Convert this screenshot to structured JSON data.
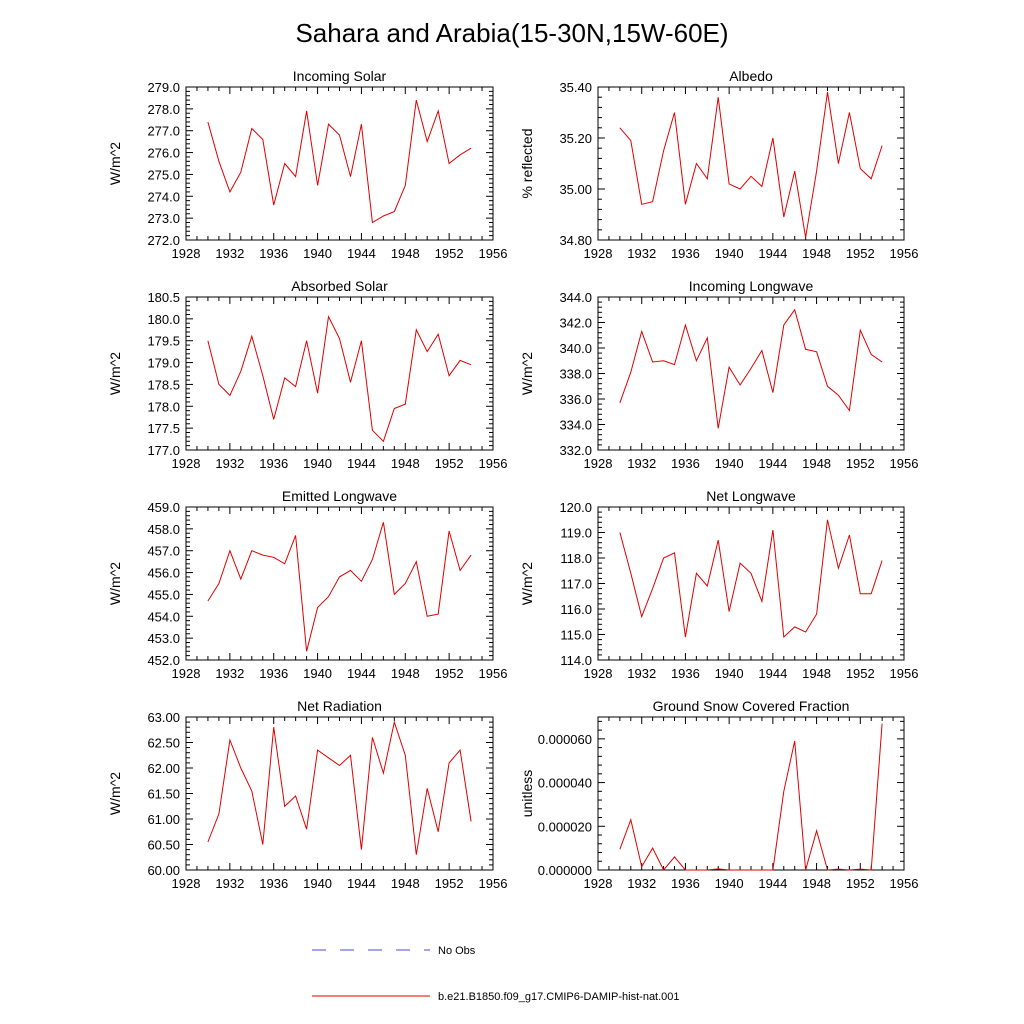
{
  "title": "Sahara and Arabia(15-30N,15W-60E)",
  "legend": {
    "obs_label": "No Obs",
    "model_label": "b.e21.B1850.f09_g17.CMIP6-DAMIP-hist-nat.001",
    "obs_color": "#4a4ad0",
    "model_color": "#e00000"
  },
  "chart_data": [
    {
      "type": "line",
      "title": "Incoming Solar",
      "ylabel": "W/m^2",
      "x": [
        1930,
        1931,
        1932,
        1933,
        1934,
        1935,
        1936,
        1937,
        1938,
        1939,
        1940,
        1941,
        1942,
        1943,
        1944,
        1945,
        1946,
        1947,
        1948,
        1949,
        1950,
        1951,
        1952,
        1953,
        1954
      ],
      "values": [
        277.4,
        275.6,
        274.2,
        275.1,
        277.1,
        276.6,
        273.6,
        275.5,
        274.9,
        277.9,
        274.5,
        277.3,
        276.8,
        274.9,
        277.3,
        272.8,
        273.1,
        273.3,
        274.5,
        278.4,
        276.5,
        277.9,
        275.5,
        275.9,
        276.2
      ],
      "xlim": [
        1928,
        1956
      ],
      "ylim": [
        272.0,
        279.0
      ],
      "yticks": [
        "272.0",
        "273.0",
        "274.0",
        "275.0",
        "276.0",
        "277.0",
        "278.0",
        "279.0"
      ],
      "xticks": [
        "1928",
        "1932",
        "1936",
        "1940",
        "1944",
        "1948",
        "1952",
        "1956"
      ]
    },
    {
      "type": "line",
      "title": "Albedo",
      "ylabel": "% reflected",
      "x": [
        1930,
        1931,
        1932,
        1933,
        1934,
        1935,
        1936,
        1937,
        1938,
        1939,
        1940,
        1941,
        1942,
        1943,
        1944,
        1945,
        1946,
        1947,
        1948,
        1949,
        1950,
        1951,
        1952,
        1953,
        1954
      ],
      "values": [
        35.24,
        35.19,
        34.94,
        34.95,
        35.15,
        35.3,
        34.94,
        35.1,
        35.04,
        35.36,
        35.02,
        35.0,
        35.05,
        35.01,
        35.2,
        34.89,
        35.07,
        34.81,
        35.07,
        35.38,
        35.1,
        35.3,
        35.08,
        35.04,
        35.17
      ],
      "xlim": [
        1928,
        1956
      ],
      "ylim": [
        34.8,
        35.4
      ],
      "yticks": [
        "34.80",
        "35.00",
        "35.20",
        "35.40"
      ],
      "xticks": [
        "1928",
        "1932",
        "1936",
        "1940",
        "1944",
        "1948",
        "1952",
        "1956"
      ]
    },
    {
      "type": "line",
      "title": "Absorbed Solar",
      "ylabel": "W/m^2",
      "x": [
        1930,
        1931,
        1932,
        1933,
        1934,
        1935,
        1936,
        1937,
        1938,
        1939,
        1940,
        1941,
        1942,
        1943,
        1944,
        1945,
        1946,
        1947,
        1948,
        1949,
        1950,
        1951,
        1952,
        1953,
        1954
      ],
      "values": [
        179.5,
        178.5,
        178.25,
        178.8,
        179.6,
        178.7,
        177.7,
        178.65,
        178.45,
        179.5,
        178.3,
        180.05,
        179.55,
        178.55,
        179.5,
        177.45,
        177.2,
        177.95,
        178.05,
        179.75,
        179.25,
        179.65,
        178.7,
        179.05,
        178.95
      ],
      "xlim": [
        1928,
        1956
      ],
      "ylim": [
        177.0,
        180.5
      ],
      "yticks": [
        "177.0",
        "177.5",
        "178.0",
        "178.5",
        "179.0",
        "179.5",
        "180.0",
        "180.5"
      ],
      "xticks": [
        "1928",
        "1932",
        "1936",
        "1940",
        "1944",
        "1948",
        "1952",
        "1956"
      ]
    },
    {
      "type": "line",
      "title": "Incoming Longwave",
      "ylabel": "W/m^2",
      "x": [
        1930,
        1931,
        1932,
        1933,
        1934,
        1935,
        1936,
        1937,
        1938,
        1939,
        1940,
        1941,
        1942,
        1943,
        1944,
        1945,
        1946,
        1947,
        1948,
        1949,
        1950,
        1951,
        1952,
        1953,
        1954
      ],
      "values": [
        335.7,
        338.1,
        341.3,
        338.9,
        339.0,
        338.7,
        341.8,
        339.0,
        340.8,
        333.7,
        338.5,
        337.1,
        338.4,
        339.8,
        336.5,
        341.8,
        343.0,
        339.9,
        339.7,
        337.0,
        336.3,
        335.1,
        341.4,
        339.5,
        338.9
      ],
      "xlim": [
        1928,
        1956
      ],
      "ylim": [
        332.0,
        344.0
      ],
      "yticks": [
        "332.0",
        "334.0",
        "336.0",
        "338.0",
        "340.0",
        "342.0",
        "344.0"
      ],
      "xticks": [
        "1928",
        "1932",
        "1936",
        "1940",
        "1944",
        "1948",
        "1952",
        "1956"
      ]
    },
    {
      "type": "line",
      "title": "Emitted Longwave",
      "ylabel": "W/m^2",
      "x": [
        1930,
        1931,
        1932,
        1933,
        1934,
        1935,
        1936,
        1937,
        1938,
        1939,
        1940,
        1941,
        1942,
        1943,
        1944,
        1945,
        1946,
        1947,
        1948,
        1949,
        1950,
        1951,
        1952,
        1953,
        1954
      ],
      "values": [
        454.7,
        455.5,
        457.0,
        455.7,
        457.0,
        456.8,
        456.7,
        456.4,
        457.7,
        452.4,
        454.4,
        454.9,
        455.8,
        456.1,
        455.6,
        456.6,
        458.3,
        455.0,
        455.5,
        456.5,
        454.0,
        454.1,
        457.9,
        456.1,
        456.8
      ],
      "xlim": [
        1928,
        1956
      ],
      "ylim": [
        452.0,
        459.0
      ],
      "yticks": [
        "452.0",
        "453.0",
        "454.0",
        "455.0",
        "456.0",
        "457.0",
        "458.0",
        "459.0"
      ],
      "xticks": [
        "1928",
        "1932",
        "1936",
        "1940",
        "1944",
        "1948",
        "1952",
        "1956"
      ]
    },
    {
      "type": "line",
      "title": "Net Longwave",
      "ylabel": "W/m^2",
      "x": [
        1930,
        1931,
        1932,
        1933,
        1934,
        1935,
        1936,
        1937,
        1938,
        1939,
        1940,
        1941,
        1942,
        1943,
        1944,
        1945,
        1946,
        1947,
        1948,
        1949,
        1950,
        1951,
        1952,
        1953,
        1954
      ],
      "values": [
        119.0,
        117.4,
        115.7,
        116.8,
        118.0,
        118.2,
        114.9,
        117.4,
        116.9,
        118.7,
        115.9,
        117.8,
        117.4,
        116.3,
        119.1,
        114.9,
        115.3,
        115.1,
        115.8,
        119.5,
        117.6,
        118.9,
        116.6,
        116.6,
        117.9
      ],
      "xlim": [
        1928,
        1956
      ],
      "ylim": [
        114.0,
        120.0
      ],
      "yticks": [
        "114.0",
        "115.0",
        "116.0",
        "117.0",
        "118.0",
        "119.0",
        "120.0"
      ],
      "xticks": [
        "1928",
        "1932",
        "1936",
        "1940",
        "1944",
        "1948",
        "1952",
        "1956"
      ]
    },
    {
      "type": "line",
      "title": "Net Radiation",
      "ylabel": "W/m^2",
      "x": [
        1930,
        1931,
        1932,
        1933,
        1934,
        1935,
        1936,
        1937,
        1938,
        1939,
        1940,
        1941,
        1942,
        1943,
        1944,
        1945,
        1946,
        1947,
        1948,
        1949,
        1950,
        1951,
        1952,
        1953,
        1954
      ],
      "values": [
        60.55,
        61.1,
        62.55,
        62.0,
        61.55,
        60.5,
        62.8,
        61.25,
        61.45,
        60.8,
        62.35,
        62.2,
        62.05,
        62.25,
        60.4,
        62.6,
        61.9,
        62.9,
        62.25,
        60.3,
        61.6,
        60.75,
        62.1,
        62.35,
        60.95
      ],
      "xlim": [
        1928,
        1956
      ],
      "ylim": [
        60.0,
        63.0
      ],
      "yticks": [
        "60.00",
        "60.50",
        "61.00",
        "61.50",
        "62.00",
        "62.50",
        "63.00"
      ],
      "xticks": [
        "1928",
        "1932",
        "1936",
        "1940",
        "1944",
        "1948",
        "1952",
        "1956"
      ]
    },
    {
      "type": "line",
      "title": "Ground Snow Covered Fraction",
      "ylabel": "unitless",
      "x": [
        1930,
        1931,
        1932,
        1933,
        1934,
        1935,
        1936,
        1937,
        1938,
        1939,
        1940,
        1941,
        1942,
        1943,
        1944,
        1945,
        1946,
        1947,
        1948,
        1949,
        1950,
        1951,
        1952,
        1953,
        1954
      ],
      "values": [
        9.5e-06,
        2.3e-05,
        1.5e-06,
        1e-05,
        0.0,
        6e-06,
        0.0,
        0.0,
        0.0,
        5e-07,
        0.0,
        0.0,
        0.0,
        0.0,
        0.0,
        3.6e-05,
        5.9e-05,
        0.0,
        1.8e-05,
        0.0,
        4e-07,
        0.0,
        4e-07,
        0.0,
        6.7e-05
      ],
      "xlim": [
        1928,
        1956
      ],
      "ylim": [
        0.0,
        7e-05
      ],
      "yticks": [
        "0.000000",
        "0.000020",
        "0.000040",
        "0.000060"
      ],
      "ytick_values": [
        0.0,
        2e-05,
        4e-05,
        6e-05
      ],
      "xticks": [
        "1928",
        "1932",
        "1936",
        "1940",
        "1944",
        "1948",
        "1952",
        "1956"
      ]
    }
  ]
}
